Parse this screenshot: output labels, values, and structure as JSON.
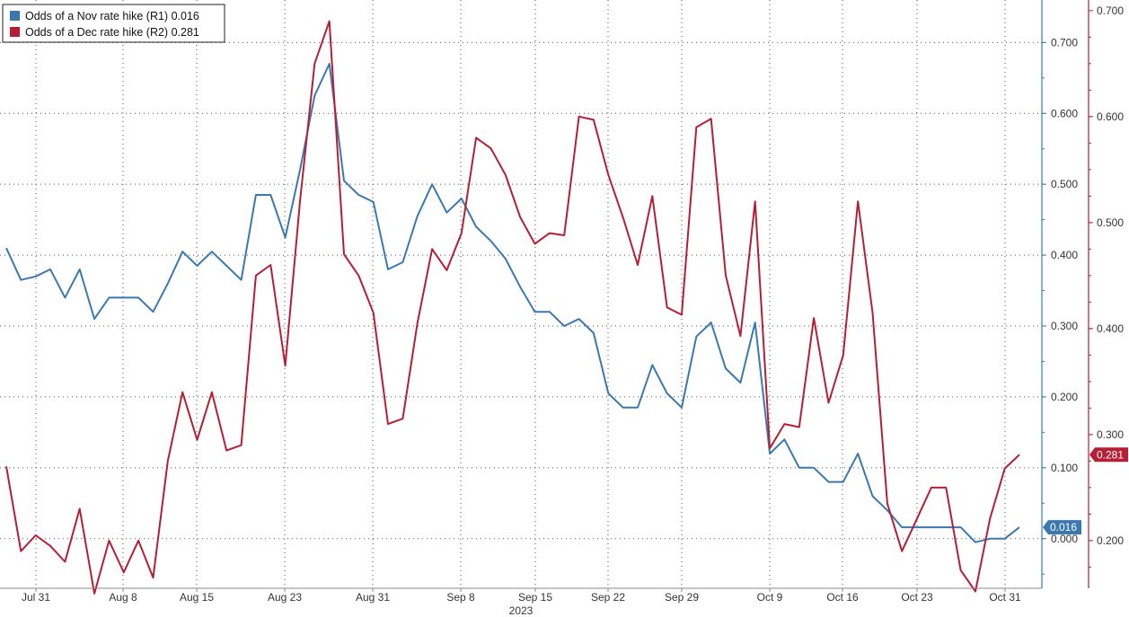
{
  "chart_data": {
    "type": "line",
    "x_tick_labels": [
      "Jul 31",
      "Aug 8",
      "Aug 15",
      "Aug 23",
      "Aug 31",
      "Sep 8",
      "Sep 15",
      "Sep 22",
      "Sep 29",
      "Oct 9",
      "Oct 16",
      "Oct 23",
      "Oct 31"
    ],
    "x_year_label": "2023",
    "axis_r1": {
      "ticks": [
        "0.000",
        "0.100",
        "0.200",
        "0.300",
        "0.400",
        "0.500",
        "0.600",
        "0.700"
      ],
      "ylim": [
        -0.07,
        0.76
      ],
      "color": "#3a78b0"
    },
    "axis_r2": {
      "ticks": [
        "0.200",
        "0.300",
        "0.400",
        "0.500",
        "0.600",
        "0.700"
      ],
      "ylim": [
        0.155,
        0.71
      ],
      "color": "#b51f35"
    },
    "grid": true,
    "legend_position": "top-left",
    "series": [
      {
        "name": "Odds of a Nov rate hike (R1)",
        "legend_label": "Odds of a Nov rate hike (R1) 0.016",
        "axis": "R1",
        "color": "#3a78b0",
        "last_value_label": "0.016",
        "values": [
          0.41,
          0.365,
          0.37,
          0.38,
          0.34,
          0.38,
          0.31,
          0.34,
          0.34,
          0.34,
          0.32,
          0.36,
          0.405,
          0.385,
          0.405,
          0.385,
          0.365,
          0.485,
          0.485,
          0.425,
          0.52,
          0.625,
          0.67,
          0.505,
          0.485,
          0.475,
          0.38,
          0.39,
          0.455,
          0.5,
          0.46,
          0.48,
          0.44,
          0.42,
          0.395,
          0.355,
          0.32,
          0.32,
          0.3,
          0.31,
          0.29,
          0.205,
          0.185,
          0.185,
          0.245,
          0.205,
          0.185,
          0.285,
          0.305,
          0.24,
          0.22,
          0.305,
          0.12,
          0.14,
          0.1,
          0.1,
          0.08,
          0.08,
          0.12,
          0.06,
          0.04,
          0.016,
          0.016,
          0.016,
          0.016,
          0.016,
          -0.005,
          0.0,
          0.0,
          0.016
        ]
      },
      {
        "name": "Odds of a Dec rate hike (R2)",
        "legend_label": "Odds of a Dec rate hike (R2) 0.281",
        "axis": "R2",
        "color": "#b51f35",
        "last_value_label": "0.281",
        "values": [
          0.27,
          0.19,
          0.205,
          0.195,
          0.18,
          0.23,
          0.15,
          0.2,
          0.17,
          0.2,
          0.165,
          0.275,
          0.34,
          0.295,
          0.34,
          0.285,
          0.29,
          0.45,
          0.46,
          0.365,
          0.52,
          0.65,
          0.69,
          0.47,
          0.45,
          0.415,
          0.31,
          0.315,
          0.405,
          0.475,
          0.455,
          0.49,
          0.58,
          0.57,
          0.545,
          0.505,
          0.48,
          0.49,
          0.488,
          0.6,
          0.597,
          0.545,
          0.505,
          0.46,
          0.525,
          0.42,
          0.413,
          0.59,
          0.598,
          0.45,
          0.393,
          0.52,
          0.287,
          0.31,
          0.307,
          0.41,
          0.33,
          0.375,
          0.52,
          0.415,
          0.235,
          0.19,
          0.22,
          0.25,
          0.25,
          0.172,
          0.152,
          0.221,
          0.268,
          0.281
        ]
      }
    ]
  }
}
